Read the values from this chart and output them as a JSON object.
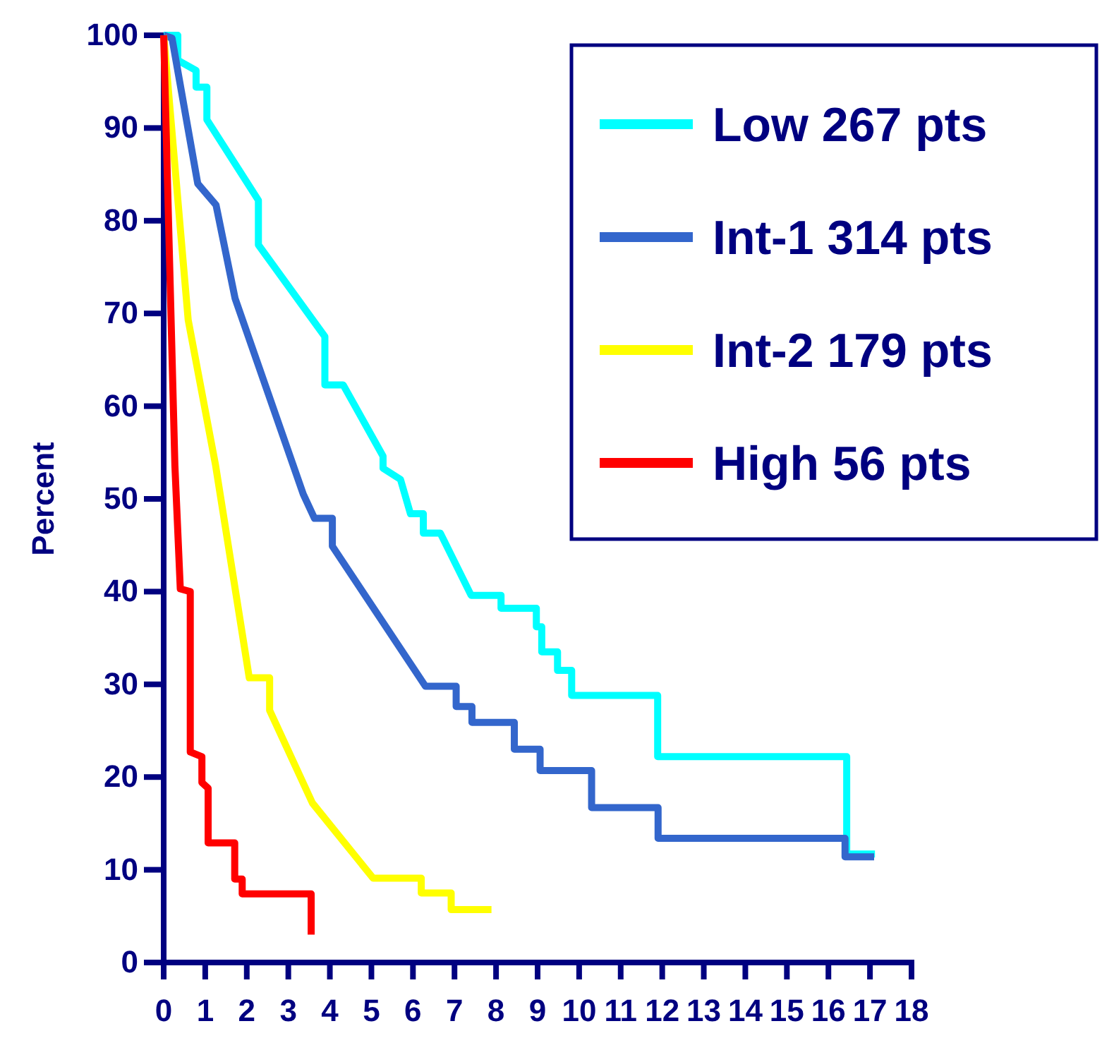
{
  "chart_data": {
    "type": "line",
    "ylabel": "Percent",
    "xlim": [
      0,
      18
    ],
    "ylim": [
      0,
      100
    ],
    "xticks": [
      0,
      1,
      2,
      3,
      4,
      5,
      6,
      7,
      8,
      9,
      10,
      11,
      12,
      13,
      14,
      15,
      16,
      17,
      18
    ],
    "yticks": [
      0,
      10,
      20,
      30,
      40,
      50,
      60,
      70,
      80,
      90,
      100
    ],
    "grid": false,
    "legend": "top right",
    "marker": "none",
    "line_style": "solid",
    "series": [
      {
        "name": "Low 267 pts",
        "color": "#00ffff",
        "x": [
          0,
          0.34,
          0.34,
          0.78,
          0.78,
          1.04,
          1.04,
          2.28,
          2.28,
          3.88,
          3.88,
          4.32,
          5.28,
          5.28,
          5.7,
          5.94,
          6.25,
          6.25,
          6.66,
          7.4,
          8.12,
          8.12,
          8.97,
          8.97,
          9.1,
          9.1,
          9.48,
          9.48,
          9.82,
          9.82,
          11.89,
          11.89,
          16.44,
          16.44,
          17.12
        ],
        "values": [
          100,
          100,
          97.3,
          96.2,
          94.4,
          94.4,
          90.9,
          82.2,
          77.4,
          67.5,
          62.3,
          62.3,
          54.6,
          53.3,
          52.1,
          48.4,
          48.4,
          46.3,
          46.3,
          39.6,
          39.6,
          38.2,
          38.2,
          36.2,
          36.2,
          33.5,
          33.5,
          31.5,
          31.5,
          28.8,
          28.8,
          22.2,
          22.2,
          11.7,
          11.7
        ]
      },
      {
        "name": "Int-1 314 pts",
        "color": "#3366cc",
        "x": [
          0,
          0.2,
          0.82,
          1.26,
          1.72,
          3.36,
          3.63,
          4.06,
          4.06,
          6.3,
          7.04,
          7.04,
          7.42,
          7.42,
          8.44,
          8.44,
          9.06,
          9.06,
          10.3,
          10.3,
          11.9,
          11.9,
          16.4,
          16.4,
          17.1
        ],
        "values": [
          100,
          99.7,
          84,
          81.7,
          71.6,
          50.5,
          47.9,
          47.9,
          44.9,
          29.8,
          29.8,
          27.6,
          27.6,
          25.9,
          25.9,
          23,
          23,
          20.7,
          20.7,
          16.7,
          16.7,
          13.4,
          13.4,
          11.4,
          11.4
        ]
      },
      {
        "name": "Int-2 179 pts",
        "color": "#ffff00",
        "x": [
          0,
          0.59,
          1.25,
          2.06,
          2.55,
          2.55,
          3.58,
          5.04,
          6.2,
          6.2,
          6.92,
          6.92,
          7.89
        ],
        "values": [
          100,
          69.3,
          53.6,
          30.7,
          30.7,
          27.2,
          17.2,
          9.1,
          9.1,
          7.5,
          7.5,
          5.7,
          5.7
        ]
      },
      {
        "name": "High 56 pts",
        "color": "#ff0000",
        "x": [
          0,
          0.27,
          0.4,
          0.64,
          0.64,
          0.92,
          0.92,
          1.07,
          1.07,
          1.71,
          1.71,
          1.89,
          1.89,
          3.55,
          3.55
        ],
        "values": [
          100,
          53.6,
          40.3,
          40,
          22.7,
          22.2,
          19.4,
          18.8,
          12.9,
          12.9,
          9,
          9,
          7.4,
          7.4,
          3
        ]
      }
    ]
  }
}
